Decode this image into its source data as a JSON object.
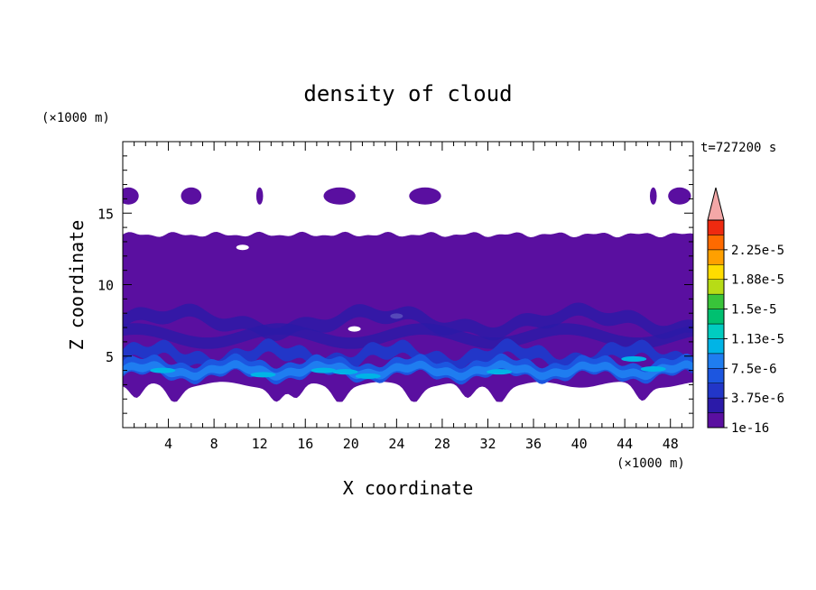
{
  "chart_data": {
    "type": "contour",
    "title": "density of cloud",
    "time_label": "t=727200 s",
    "xlabel": "X coordinate",
    "ylabel": "Z coordinate",
    "x_unit": "(×1000 m)",
    "y_unit": "(×1000 m)",
    "xlim": [
      0,
      50
    ],
    "ylim": [
      0,
      20
    ],
    "x_ticks": [
      4,
      8,
      12,
      16,
      20,
      24,
      28,
      32,
      36,
      40,
      44,
      48
    ],
    "y_ticks": [
      5,
      10,
      15
    ],
    "colorbar": {
      "levels": [
        1e-16,
        1.875e-06,
        3.75e-06,
        5.625e-06,
        7.5e-06,
        9.375e-06,
        1.125e-05,
        1.3125e-05,
        1.5e-05,
        1.6875e-05,
        1.875e-05,
        2.0625e-05,
        2.25e-05,
        2.4375e-05
      ],
      "label_values": [
        "1e-16",
        "3.75e-6",
        "7.5e-6",
        "1.13e-5",
        "1.5e-5",
        "1.88e-5",
        "2.25e-5"
      ],
      "colors": [
        "#5a0fa0",
        "#2b1aa8",
        "#2236c8",
        "#1c56e0",
        "#1f7df0",
        "#00b4e6",
        "#00ccc0",
        "#00c070",
        "#39c43a",
        "#b7dc16",
        "#ffdd00",
        "#ffa000",
        "#ff6a00",
        "#ee2a10"
      ],
      "extend_color": "#f3a7a7",
      "extend": "max"
    },
    "cloud_layer": {
      "main_deck_z": [
        3.0,
        13.5
      ],
      "upper_patches_z": [
        15.8,
        16.7
      ],
      "dense_band_z": [
        3.2,
        5.5
      ],
      "background_color": "#5a0fa0"
    }
  }
}
